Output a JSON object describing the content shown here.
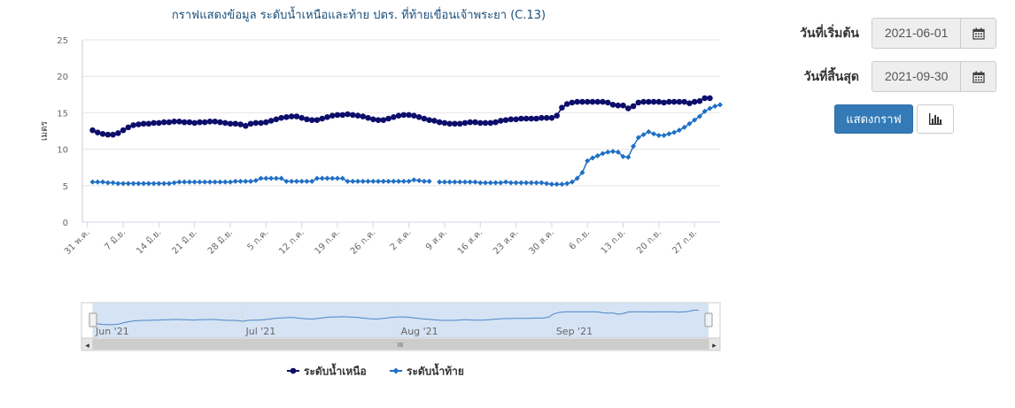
{
  "form": {
    "start_label": "วันที่เริ่มต้น",
    "start_value": "2021-06-01",
    "end_label": "วันที่สิ้นสุด",
    "end_value": "2021-09-30",
    "show_button": "แสดงกราฟ",
    "calendar_icon": "calendar-icon",
    "chart_icon": "bar-chart-icon"
  },
  "navigator": {
    "month_labels": [
      "Jun '21",
      "Jul '21",
      "Aug '21",
      "Sep '21"
    ],
    "scroll_center_glyph": "III",
    "left_arrow": "◂",
    "right_arrow": "▸"
  },
  "chart_data": {
    "type": "line",
    "title": "กราฟแสดงข้อมูล ระดับน้ำเหนือและท้าย ปตร. ที่ท้ายเขื่อนเจ้าพระยา (C.13)",
    "ylabel": "เมตร",
    "ylim": [
      0,
      25
    ],
    "yticks": [
      0,
      5,
      10,
      15,
      20,
      25
    ],
    "x_range": [
      "2021-06-01",
      "2021-09-30"
    ],
    "x_ticks": [
      {
        "date": "2021-05-31",
        "label": "31 พ.ค."
      },
      {
        "date": "2021-06-07",
        "label": "7 มิ.ย."
      },
      {
        "date": "2021-06-14",
        "label": "14 มิ.ย."
      },
      {
        "date": "2021-06-21",
        "label": "21 มิ.ย."
      },
      {
        "date": "2021-06-28",
        "label": "28 มิ.ย."
      },
      {
        "date": "2021-07-05",
        "label": "5 ก.ค."
      },
      {
        "date": "2021-07-12",
        "label": "12 ก.ค."
      },
      {
        "date": "2021-07-19",
        "label": "19 ก.ค."
      },
      {
        "date": "2021-07-26",
        "label": "26 ก.ค."
      },
      {
        "date": "2021-08-02",
        "label": "2 ส.ค."
      },
      {
        "date": "2021-08-09",
        "label": "9 ส.ค."
      },
      {
        "date": "2021-08-16",
        "label": "16 ส.ค."
      },
      {
        "date": "2021-08-23",
        "label": "23 ส.ค."
      },
      {
        "date": "2021-08-30",
        "label": "30 ส.ค."
      },
      {
        "date": "2021-09-06",
        "label": "6 ก.ย."
      },
      {
        "date": "2021-09-13",
        "label": "13 ก.ย."
      },
      {
        "date": "2021-09-20",
        "label": "20 ก.ย."
      },
      {
        "date": "2021-09-27",
        "label": "27 ก.ย."
      }
    ],
    "grid": true,
    "legend_position": "bottom",
    "series": [
      {
        "name": "ระดับน้ำเหนือ",
        "color": "#0d0d6b",
        "marker": "circle",
        "points": [
          [
            "2021-06-01",
            12.6
          ],
          [
            "2021-06-02",
            12.3
          ],
          [
            "2021-06-03",
            12.1
          ],
          [
            "2021-06-04",
            12.0
          ],
          [
            "2021-06-05",
            12.0
          ],
          [
            "2021-06-06",
            12.2
          ],
          [
            "2021-06-07",
            12.6
          ],
          [
            "2021-06-08",
            13.0
          ],
          [
            "2021-06-09",
            13.3
          ],
          [
            "2021-06-10",
            13.4
          ],
          [
            "2021-06-11",
            13.5
          ],
          [
            "2021-06-12",
            13.5
          ],
          [
            "2021-06-13",
            13.6
          ],
          [
            "2021-06-14",
            13.6
          ],
          [
            "2021-06-15",
            13.7
          ],
          [
            "2021-06-16",
            13.7
          ],
          [
            "2021-06-17",
            13.8
          ],
          [
            "2021-06-18",
            13.8
          ],
          [
            "2021-06-19",
            13.7
          ],
          [
            "2021-06-20",
            13.7
          ],
          [
            "2021-06-21",
            13.6
          ],
          [
            "2021-06-22",
            13.7
          ],
          [
            "2021-06-23",
            13.7
          ],
          [
            "2021-06-24",
            13.8
          ],
          [
            "2021-06-25",
            13.8
          ],
          [
            "2021-06-26",
            13.7
          ],
          [
            "2021-06-27",
            13.6
          ],
          [
            "2021-06-28",
            13.5
          ],
          [
            "2021-06-29",
            13.5
          ],
          [
            "2021-06-30",
            13.4
          ],
          [
            "2021-07-01",
            13.2
          ],
          [
            "2021-07-02",
            13.5
          ],
          [
            "2021-07-03",
            13.6
          ],
          [
            "2021-07-04",
            13.6
          ],
          [
            "2021-07-05",
            13.7
          ],
          [
            "2021-07-06",
            13.9
          ],
          [
            "2021-07-07",
            14.1
          ],
          [
            "2021-07-08",
            14.3
          ],
          [
            "2021-07-09",
            14.4
          ],
          [
            "2021-07-10",
            14.5
          ],
          [
            "2021-07-11",
            14.5
          ],
          [
            "2021-07-12",
            14.3
          ],
          [
            "2021-07-13",
            14.1
          ],
          [
            "2021-07-14",
            14.0
          ],
          [
            "2021-07-15",
            14.0
          ],
          [
            "2021-07-16",
            14.2
          ],
          [
            "2021-07-17",
            14.4
          ],
          [
            "2021-07-18",
            14.6
          ],
          [
            "2021-07-19",
            14.7
          ],
          [
            "2021-07-20",
            14.7
          ],
          [
            "2021-07-21",
            14.8
          ],
          [
            "2021-07-22",
            14.7
          ],
          [
            "2021-07-23",
            14.6
          ],
          [
            "2021-07-24",
            14.5
          ],
          [
            "2021-07-25",
            14.3
          ],
          [
            "2021-07-26",
            14.1
          ],
          [
            "2021-07-27",
            14.0
          ],
          [
            "2021-07-28",
            14.0
          ],
          [
            "2021-07-29",
            14.2
          ],
          [
            "2021-07-30",
            14.4
          ],
          [
            "2021-07-31",
            14.6
          ],
          [
            "2021-08-01",
            14.7
          ],
          [
            "2021-08-02",
            14.7
          ],
          [
            "2021-08-03",
            14.6
          ],
          [
            "2021-08-04",
            14.4
          ],
          [
            "2021-08-05",
            14.2
          ],
          [
            "2021-08-06",
            14.0
          ],
          [
            "2021-08-07",
            13.9
          ],
          [
            "2021-08-08",
            13.7
          ],
          [
            "2021-08-09",
            13.6
          ],
          [
            "2021-08-10",
            13.5
          ],
          [
            "2021-08-11",
            13.5
          ],
          [
            "2021-08-12",
            13.5
          ],
          [
            "2021-08-13",
            13.6
          ],
          [
            "2021-08-14",
            13.7
          ],
          [
            "2021-08-15",
            13.7
          ],
          [
            "2021-08-16",
            13.6
          ],
          [
            "2021-08-17",
            13.6
          ],
          [
            "2021-08-18",
            13.6
          ],
          [
            "2021-08-19",
            13.7
          ],
          [
            "2021-08-20",
            13.9
          ],
          [
            "2021-08-21",
            14.0
          ],
          [
            "2021-08-22",
            14.1
          ],
          [
            "2021-08-23",
            14.1
          ],
          [
            "2021-08-24",
            14.2
          ],
          [
            "2021-08-25",
            14.2
          ],
          [
            "2021-08-26",
            14.2
          ],
          [
            "2021-08-27",
            14.2
          ],
          [
            "2021-08-28",
            14.3
          ],
          [
            "2021-08-29",
            14.3
          ],
          [
            "2021-08-30",
            14.3
          ],
          [
            "2021-08-31",
            14.6
          ],
          [
            "2021-09-01",
            15.7
          ],
          [
            "2021-09-02",
            16.2
          ],
          [
            "2021-09-03",
            16.4
          ],
          [
            "2021-09-04",
            16.5
          ],
          [
            "2021-09-05",
            16.5
          ],
          [
            "2021-09-06",
            16.5
          ],
          [
            "2021-09-07",
            16.5
          ],
          [
            "2021-09-08",
            16.5
          ],
          [
            "2021-09-09",
            16.5
          ],
          [
            "2021-09-10",
            16.4
          ],
          [
            "2021-09-11",
            16.1
          ],
          [
            "2021-09-12",
            16.0
          ],
          [
            "2021-09-13",
            16.0
          ],
          [
            "2021-09-14",
            15.6
          ],
          [
            "2021-09-15",
            15.9
          ],
          [
            "2021-09-16",
            16.4
          ],
          [
            "2021-09-17",
            16.5
          ],
          [
            "2021-09-18",
            16.5
          ],
          [
            "2021-09-19",
            16.5
          ],
          [
            "2021-09-20",
            16.5
          ],
          [
            "2021-09-21",
            16.4
          ],
          [
            "2021-09-22",
            16.5
          ],
          [
            "2021-09-23",
            16.5
          ],
          [
            "2021-09-24",
            16.5
          ],
          [
            "2021-09-25",
            16.5
          ],
          [
            "2021-09-26",
            16.3
          ],
          [
            "2021-09-27",
            16.5
          ],
          [
            "2021-09-28",
            16.6
          ],
          [
            "2021-09-29",
            17.0
          ],
          [
            "2021-09-30",
            17.0
          ]
        ]
      },
      {
        "name": "ระดับน้ำท้าย",
        "color": "#1f6fc5",
        "marker": "diamond",
        "points": [
          [
            "2021-06-01",
            5.5
          ],
          [
            "2021-06-02",
            5.5
          ],
          [
            "2021-06-03",
            5.5
          ],
          [
            "2021-06-04",
            5.4
          ],
          [
            "2021-06-05",
            5.4
          ],
          [
            "2021-06-06",
            5.3
          ],
          [
            "2021-06-07",
            5.3
          ],
          [
            "2021-06-08",
            5.3
          ],
          [
            "2021-06-09",
            5.3
          ],
          [
            "2021-06-10",
            5.3
          ],
          [
            "2021-06-11",
            5.3
          ],
          [
            "2021-06-12",
            5.3
          ],
          [
            "2021-06-13",
            5.3
          ],
          [
            "2021-06-14",
            5.3
          ],
          [
            "2021-06-15",
            5.3
          ],
          [
            "2021-06-16",
            5.3
          ],
          [
            "2021-06-17",
            5.4
          ],
          [
            "2021-06-18",
            5.5
          ],
          [
            "2021-06-19",
            5.5
          ],
          [
            "2021-06-20",
            5.5
          ],
          [
            "2021-06-21",
            5.5
          ],
          [
            "2021-06-22",
            5.5
          ],
          [
            "2021-06-23",
            5.5
          ],
          [
            "2021-06-24",
            5.5
          ],
          [
            "2021-06-25",
            5.5
          ],
          [
            "2021-06-26",
            5.5
          ],
          [
            "2021-06-27",
            5.5
          ],
          [
            "2021-06-28",
            5.5
          ],
          [
            "2021-06-29",
            5.6
          ],
          [
            "2021-06-30",
            5.6
          ],
          [
            "2021-07-01",
            5.6
          ],
          [
            "2021-07-02",
            5.6
          ],
          [
            "2021-07-03",
            5.7
          ],
          [
            "2021-07-04",
            6.0
          ],
          [
            "2021-07-05",
            6.0
          ],
          [
            "2021-07-06",
            6.0
          ],
          [
            "2021-07-07",
            6.0
          ],
          [
            "2021-07-08",
            6.0
          ],
          [
            "2021-07-09",
            5.6
          ],
          [
            "2021-07-10",
            5.6
          ],
          [
            "2021-07-11",
            5.6
          ],
          [
            "2021-07-12",
            5.6
          ],
          [
            "2021-07-13",
            5.6
          ],
          [
            "2021-07-14",
            5.6
          ],
          [
            "2021-07-15",
            6.0
          ],
          [
            "2021-07-16",
            6.0
          ],
          [
            "2021-07-17",
            6.0
          ],
          [
            "2021-07-18",
            6.0
          ],
          [
            "2021-07-19",
            6.0
          ],
          [
            "2021-07-20",
            6.0
          ],
          [
            "2021-07-21",
            5.6
          ],
          [
            "2021-07-22",
            5.6
          ],
          [
            "2021-07-23",
            5.6
          ],
          [
            "2021-07-24",
            5.6
          ],
          [
            "2021-07-25",
            5.6
          ],
          [
            "2021-07-26",
            5.6
          ],
          [
            "2021-07-27",
            5.6
          ],
          [
            "2021-07-28",
            5.6
          ],
          [
            "2021-07-29",
            5.6
          ],
          [
            "2021-07-30",
            5.6
          ],
          [
            "2021-07-31",
            5.6
          ],
          [
            "2021-08-01",
            5.6
          ],
          [
            "2021-08-02",
            5.6
          ],
          [
            "2021-08-03",
            5.8
          ],
          [
            "2021-08-04",
            5.7
          ],
          [
            "2021-08-05",
            5.6
          ],
          [
            "2021-08-06",
            5.6
          ],
          [
            null,
            null
          ],
          [
            "2021-08-08",
            5.5
          ],
          [
            "2021-08-09",
            5.5
          ],
          [
            "2021-08-10",
            5.5
          ],
          [
            "2021-08-11",
            5.5
          ],
          [
            "2021-08-12",
            5.5
          ],
          [
            "2021-08-13",
            5.5
          ],
          [
            "2021-08-14",
            5.5
          ],
          [
            "2021-08-15",
            5.5
          ],
          [
            "2021-08-16",
            5.4
          ],
          [
            "2021-08-17",
            5.4
          ],
          [
            "2021-08-18",
            5.4
          ],
          [
            "2021-08-19",
            5.4
          ],
          [
            "2021-08-20",
            5.4
          ],
          [
            "2021-08-21",
            5.5
          ],
          [
            "2021-08-22",
            5.4
          ],
          [
            "2021-08-23",
            5.4
          ],
          [
            "2021-08-24",
            5.4
          ],
          [
            "2021-08-25",
            5.4
          ],
          [
            "2021-08-26",
            5.4
          ],
          [
            "2021-08-27",
            5.4
          ],
          [
            "2021-08-28",
            5.4
          ],
          [
            "2021-08-29",
            5.3
          ],
          [
            "2021-08-30",
            5.2
          ],
          [
            "2021-08-31",
            5.2
          ],
          [
            "2021-09-01",
            5.2
          ],
          [
            "2021-09-02",
            5.3
          ],
          [
            "2021-09-03",
            5.5
          ],
          [
            "2021-09-04",
            6.0
          ],
          [
            "2021-09-05",
            6.8
          ],
          [
            "2021-09-06",
            8.4
          ],
          [
            "2021-09-07",
            8.8
          ],
          [
            "2021-09-08",
            9.1
          ],
          [
            "2021-09-09",
            9.4
          ],
          [
            "2021-09-10",
            9.6
          ],
          [
            "2021-09-11",
            9.7
          ],
          [
            "2021-09-12",
            9.6
          ],
          [
            "2021-09-13",
            9.0
          ],
          [
            "2021-09-14",
            8.9
          ],
          [
            "2021-09-15",
            10.4
          ],
          [
            "2021-09-16",
            11.6
          ],
          [
            "2021-09-17",
            12.0
          ],
          [
            "2021-09-18",
            12.4
          ],
          [
            "2021-09-19",
            12.1
          ],
          [
            "2021-09-20",
            11.9
          ],
          [
            "2021-09-21",
            11.9
          ],
          [
            "2021-09-22",
            12.1
          ],
          [
            "2021-09-23",
            12.3
          ],
          [
            "2021-09-24",
            12.6
          ],
          [
            "2021-09-25",
            13.0
          ],
          [
            "2021-09-26",
            13.5
          ],
          [
            "2021-09-27",
            14.0
          ],
          [
            "2021-09-28",
            14.5
          ],
          [
            "2021-09-29",
            15.2
          ],
          [
            "2021-09-30",
            15.6
          ],
          [
            "2021-10-01",
            15.9
          ],
          [
            "2021-10-02",
            16.1
          ]
        ]
      }
    ]
  }
}
